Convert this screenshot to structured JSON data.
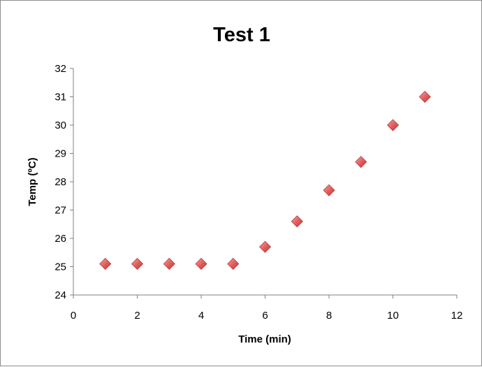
{
  "chart_data": {
    "type": "scatter",
    "title": "Test 1",
    "xlabel": "Time (min)",
    "ylabel": "Temp (ºC)",
    "xlim": [
      0,
      12
    ],
    "ylim": [
      24,
      32
    ],
    "xticks": [
      0,
      2,
      4,
      6,
      8,
      10,
      12
    ],
    "yticks": [
      24,
      25,
      26,
      27,
      28,
      29,
      30,
      31,
      32
    ],
    "grid": false,
    "legend": "none",
    "marker": "diamond",
    "marker_color": "#e05a5a",
    "series": [
      {
        "x": [
          1,
          2,
          3,
          4,
          5,
          6,
          7,
          8,
          9,
          10,
          11
        ],
        "y": [
          25.1,
          25.1,
          25.1,
          25.1,
          25.1,
          25.7,
          26.6,
          27.7,
          28.7,
          30.0,
          31.0
        ]
      }
    ]
  }
}
